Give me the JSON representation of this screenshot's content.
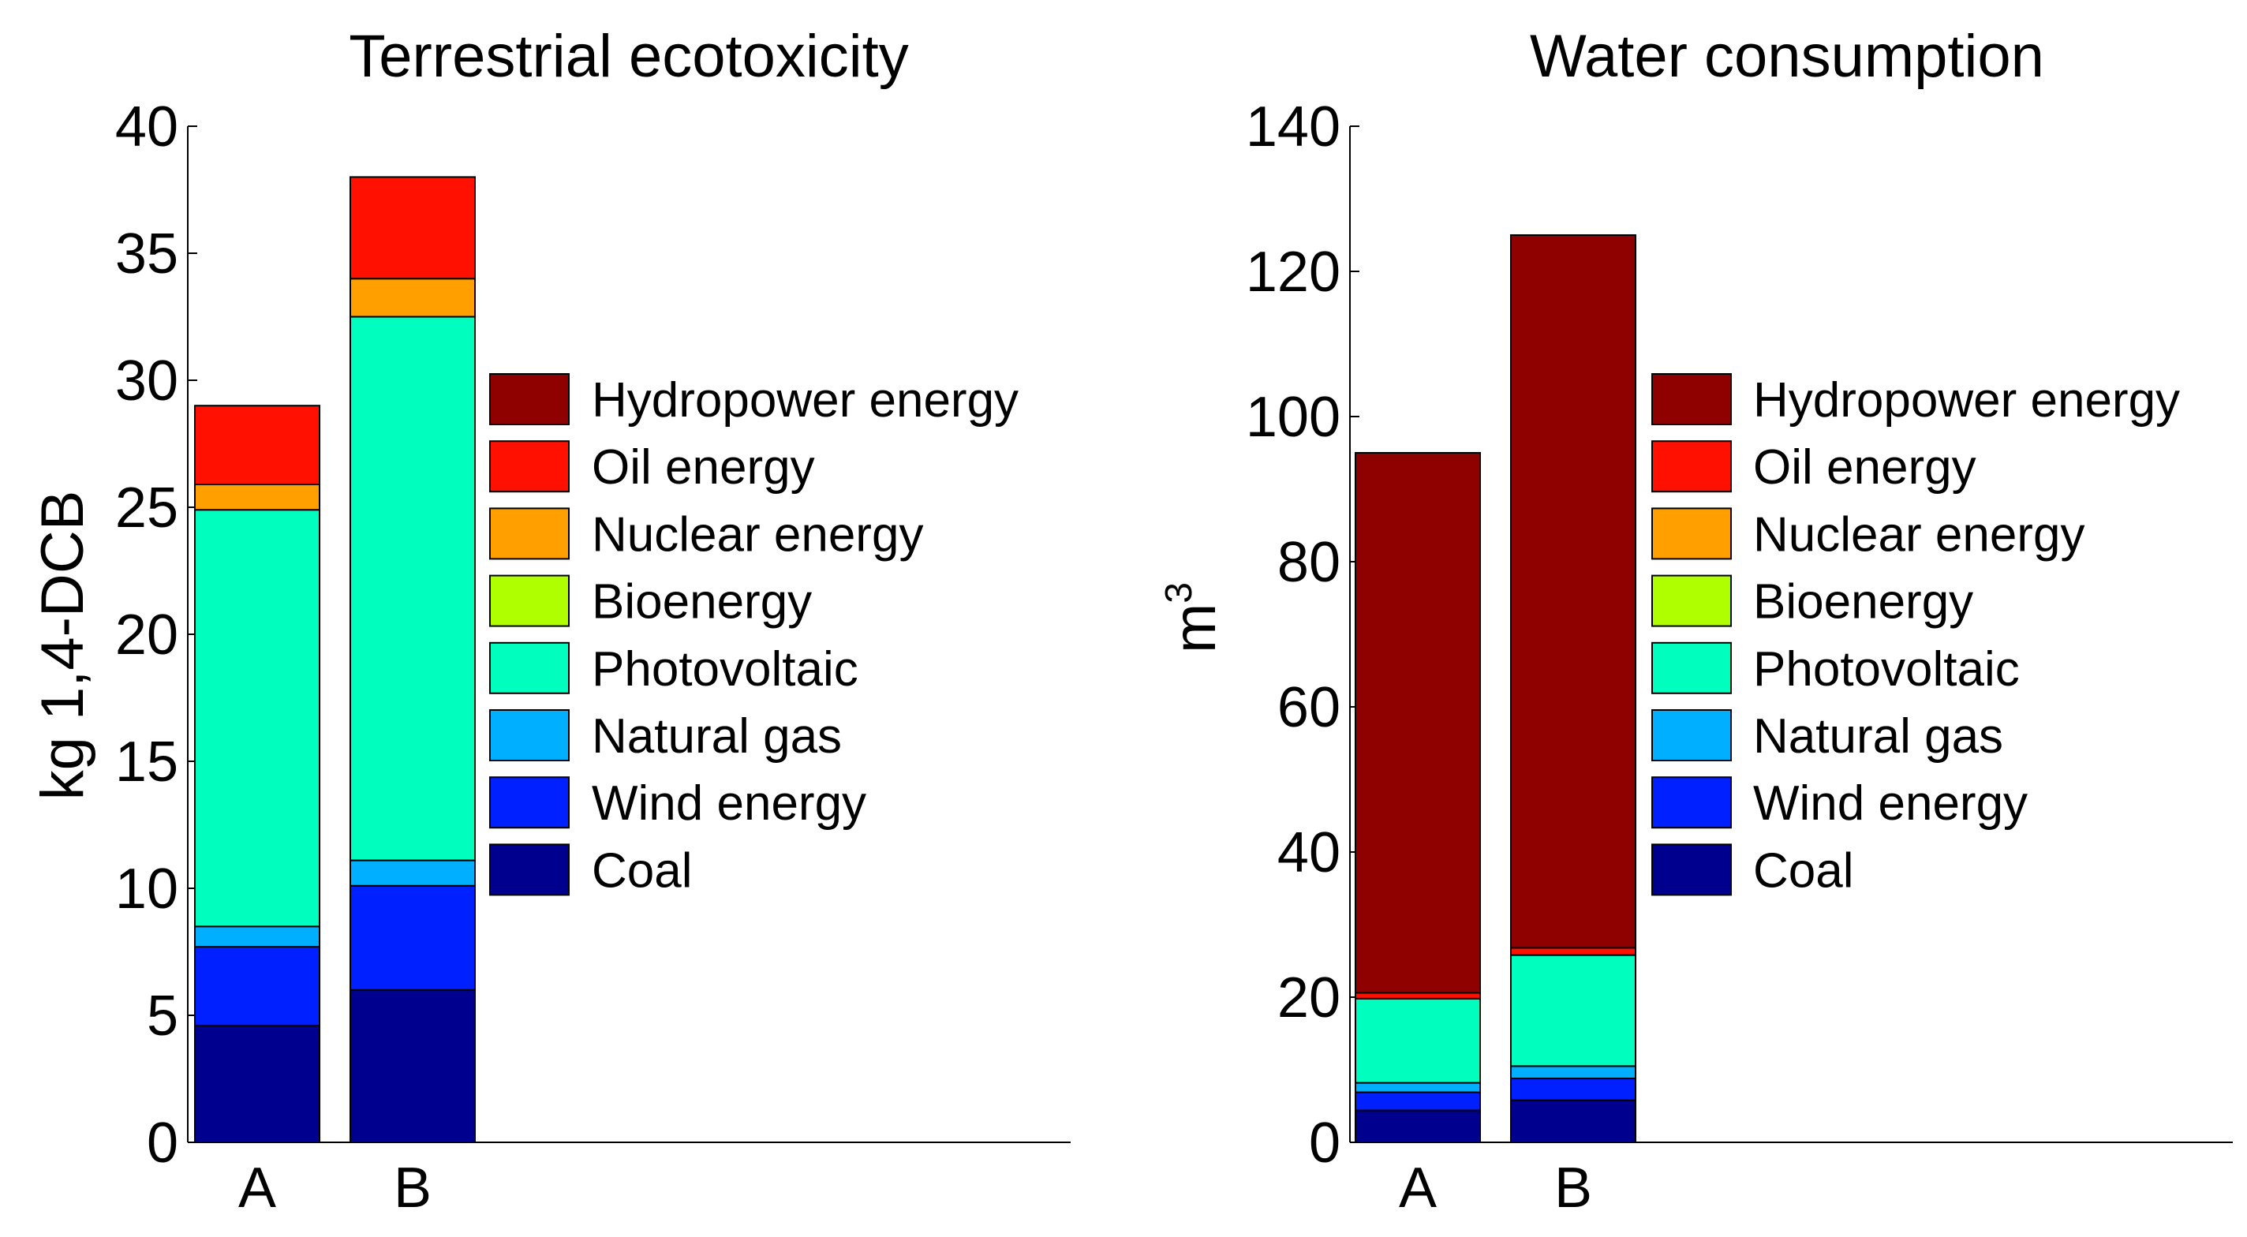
{
  "chart_data": [
    {
      "type": "bar",
      "stacked": true,
      "title": "Terrestrial ecotoxicity",
      "ylabel": "kg 1,4-DCB",
      "xlabel": "",
      "categories": [
        "A",
        "B"
      ],
      "ylim": [
        0,
        40
      ],
      "yticks": [
        0,
        5,
        10,
        15,
        20,
        25,
        30,
        35,
        40
      ],
      "series": [
        {
          "name": "Coal",
          "color": "#00008F",
          "values": [
            4.6,
            6.0
          ]
        },
        {
          "name": "Wind energy",
          "color": "#0020FF",
          "values": [
            3.1,
            4.1
          ]
        },
        {
          "name": "Natural gas",
          "color": "#00AFFF",
          "values": [
            0.8,
            1.0
          ]
        },
        {
          "name": "Photovoltaic",
          "color": "#00FFBF",
          "values": [
            16.4,
            21.4
          ]
        },
        {
          "name": "Bioenergy",
          "color": "#AFFF00",
          "values": [
            0,
            0
          ]
        },
        {
          "name": "Nuclear energy",
          "color": "#FF9F00",
          "values": [
            1.0,
            1.5
          ]
        },
        {
          "name": "Oil energy",
          "color": "#FF1000",
          "values": [
            3.1,
            4.0
          ]
        },
        {
          "name": "Hydropower energy",
          "color": "#8F0000",
          "values": [
            0,
            0
          ]
        }
      ],
      "legend_position": "center-right"
    },
    {
      "type": "bar",
      "stacked": true,
      "title": "Water consumption",
      "ylabel": "m",
      "ylabel_superscript": "3",
      "xlabel": "",
      "categories": [
        "A",
        "B"
      ],
      "ylim": [
        0,
        140
      ],
      "yticks": [
        0,
        20,
        40,
        60,
        80,
        100,
        120,
        140
      ],
      "series": [
        {
          "name": "Coal",
          "color": "#00008F",
          "values": [
            4.4,
            5.8
          ]
        },
        {
          "name": "Wind energy",
          "color": "#0020FF",
          "values": [
            2.5,
            3.0
          ]
        },
        {
          "name": "Natural gas",
          "color": "#00AFFF",
          "values": [
            1.3,
            1.7
          ]
        },
        {
          "name": "Photovoltaic",
          "color": "#00FFBF",
          "values": [
            11.6,
            15.3
          ]
        },
        {
          "name": "Bioenergy",
          "color": "#AFFF00",
          "values": [
            0,
            0
          ]
        },
        {
          "name": "Nuclear energy",
          "color": "#FF9F00",
          "values": [
            0,
            0
          ]
        },
        {
          "name": "Oil energy",
          "color": "#FF1000",
          "values": [
            0.8,
            1.0
          ]
        },
        {
          "name": "Hydropower energy",
          "color": "#8F0000",
          "values": [
            74.4,
            98.2
          ]
        }
      ],
      "legend_position": "center-right"
    }
  ]
}
